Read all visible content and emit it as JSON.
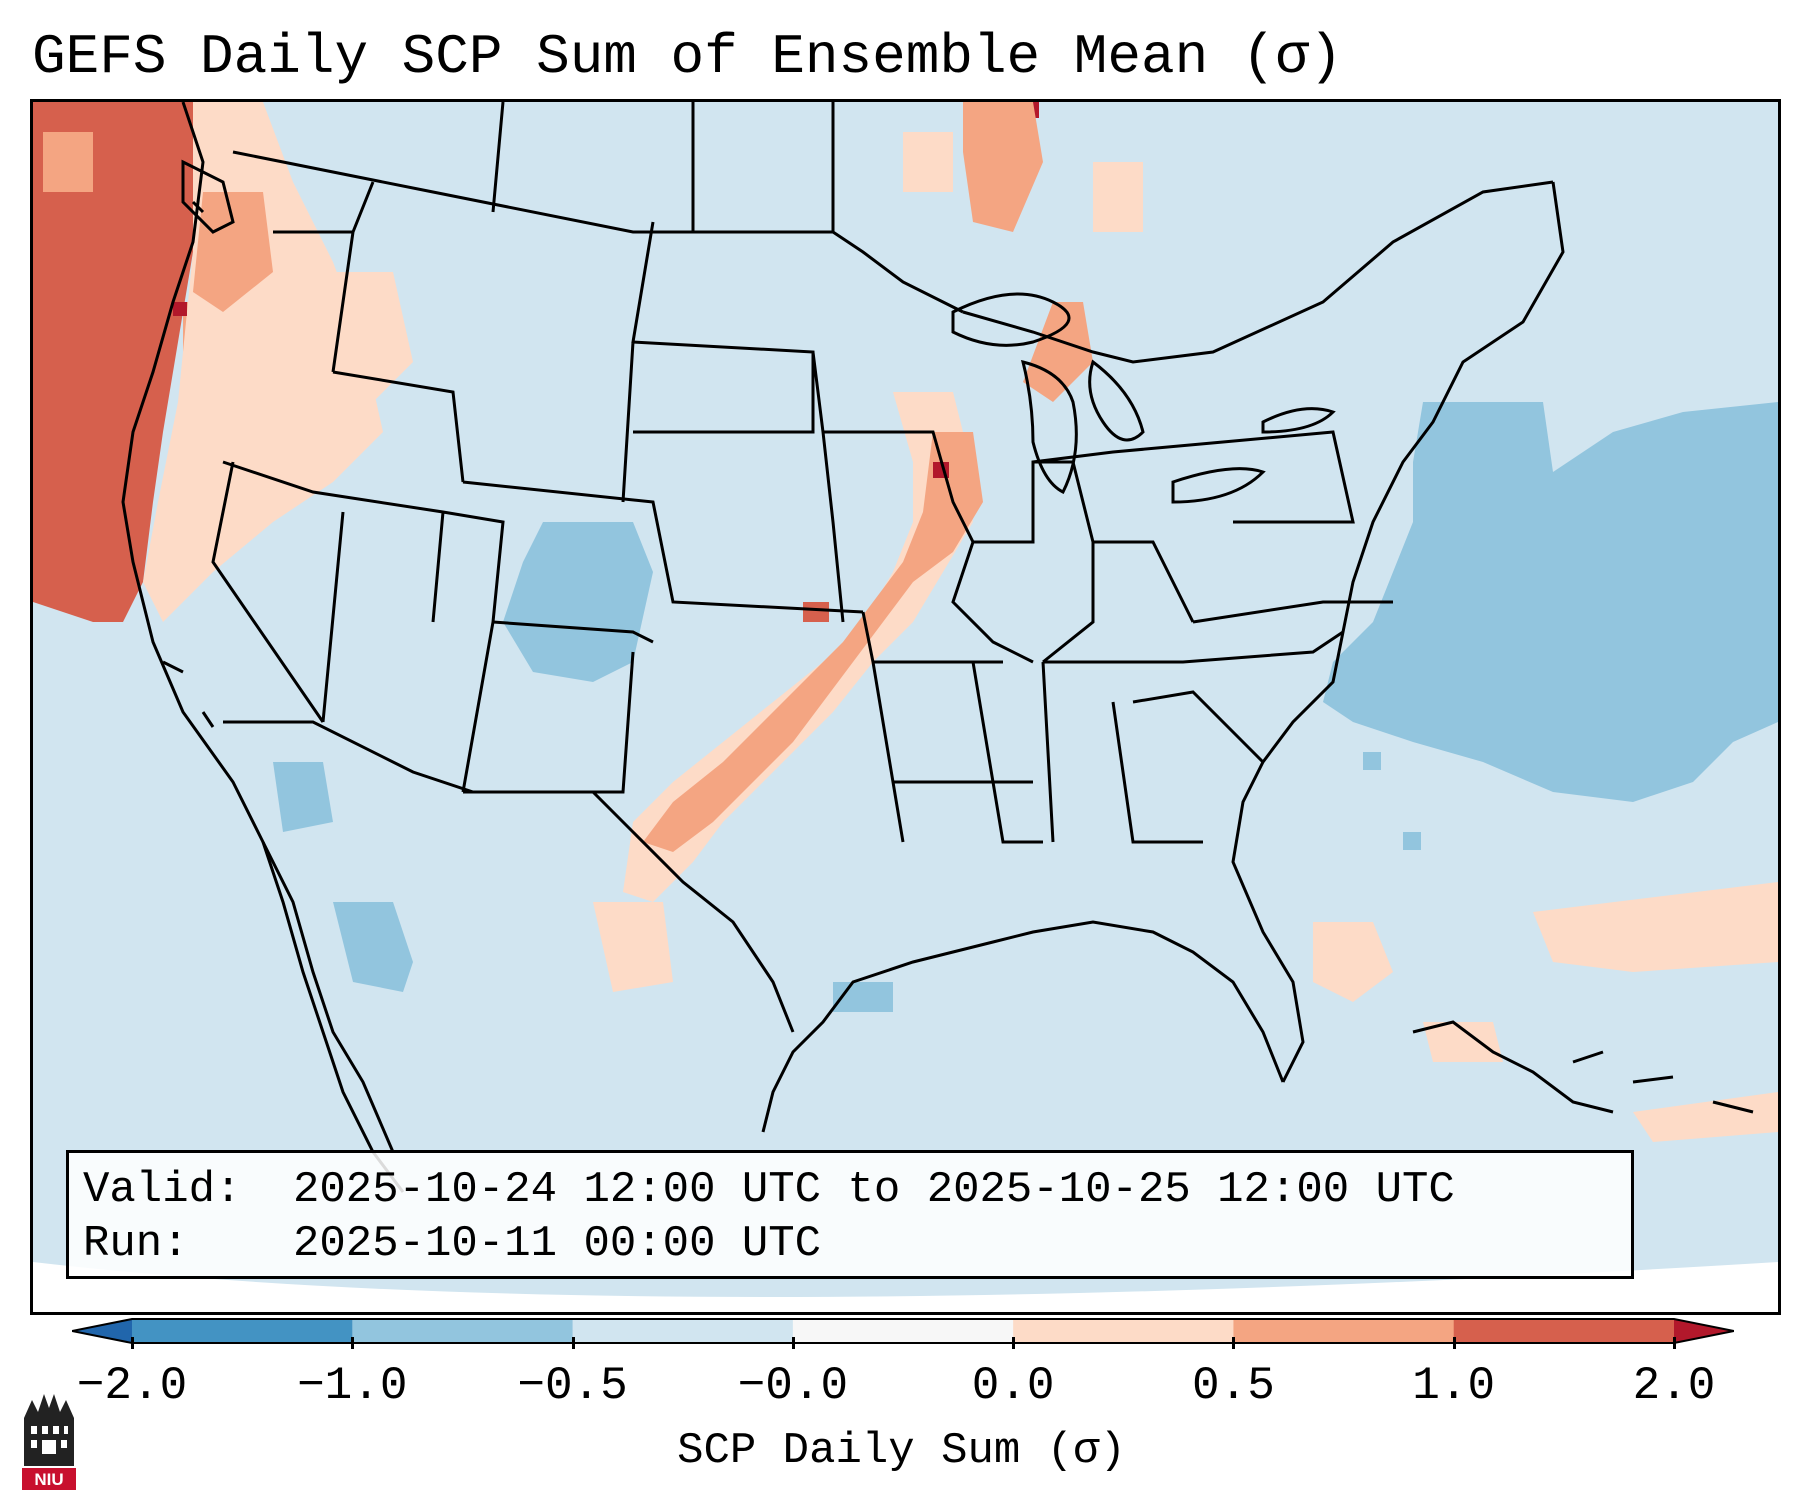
{
  "title": "GEFS Daily SCP Sum of Ensemble Mean (σ)",
  "valid_label": "Valid:",
  "valid_value": "2025-10-24 12:00 UTC to 2025-10-25 12:00 UTC",
  "run_label": "Run:",
  "run_value": "2025-10-11 00:00 UTC",
  "colorbar": {
    "label": "SCP Daily Sum (σ)",
    "ticks": [
      "−2.0",
      "−1.0",
      "−0.5",
      "−0.0",
      "0.0",
      "0.5",
      "1.0",
      "2.0"
    ],
    "bins": [
      {
        "range": "< -2.0",
        "color": "#2166ac"
      },
      {
        "range": "-2.0 to -1.0",
        "color": "#4393c3"
      },
      {
        "range": "-1.0 to -0.5",
        "color": "#92c5de"
      },
      {
        "range": "-0.5 to -0.0",
        "color": "#d1e5f0"
      },
      {
        "range": "-0.0 to 0.0",
        "color": "#f7f7f7"
      },
      {
        "range": "0.0 to 0.5",
        "color": "#fddbc7"
      },
      {
        "range": "0.5 to 1.0",
        "color": "#f4a582"
      },
      {
        "range": "1.0 to 2.0",
        "color": "#d6604d"
      },
      {
        "range": "> 2.0",
        "color": "#b2182b"
      }
    ]
  },
  "map_regions": {
    "positive_anomaly_areas": [
      "Pacific Northwest",
      "Great Lakes / Wisconsin",
      "Iowa–Illinois",
      "Kansas–Oklahoma corridor",
      "Texas Panhandle"
    ],
    "negative_anomaly_areas": [
      "Western Atlantic",
      "Colorado",
      "Baja California",
      "Gulf of California"
    ]
  },
  "logo_text": "NIU"
}
